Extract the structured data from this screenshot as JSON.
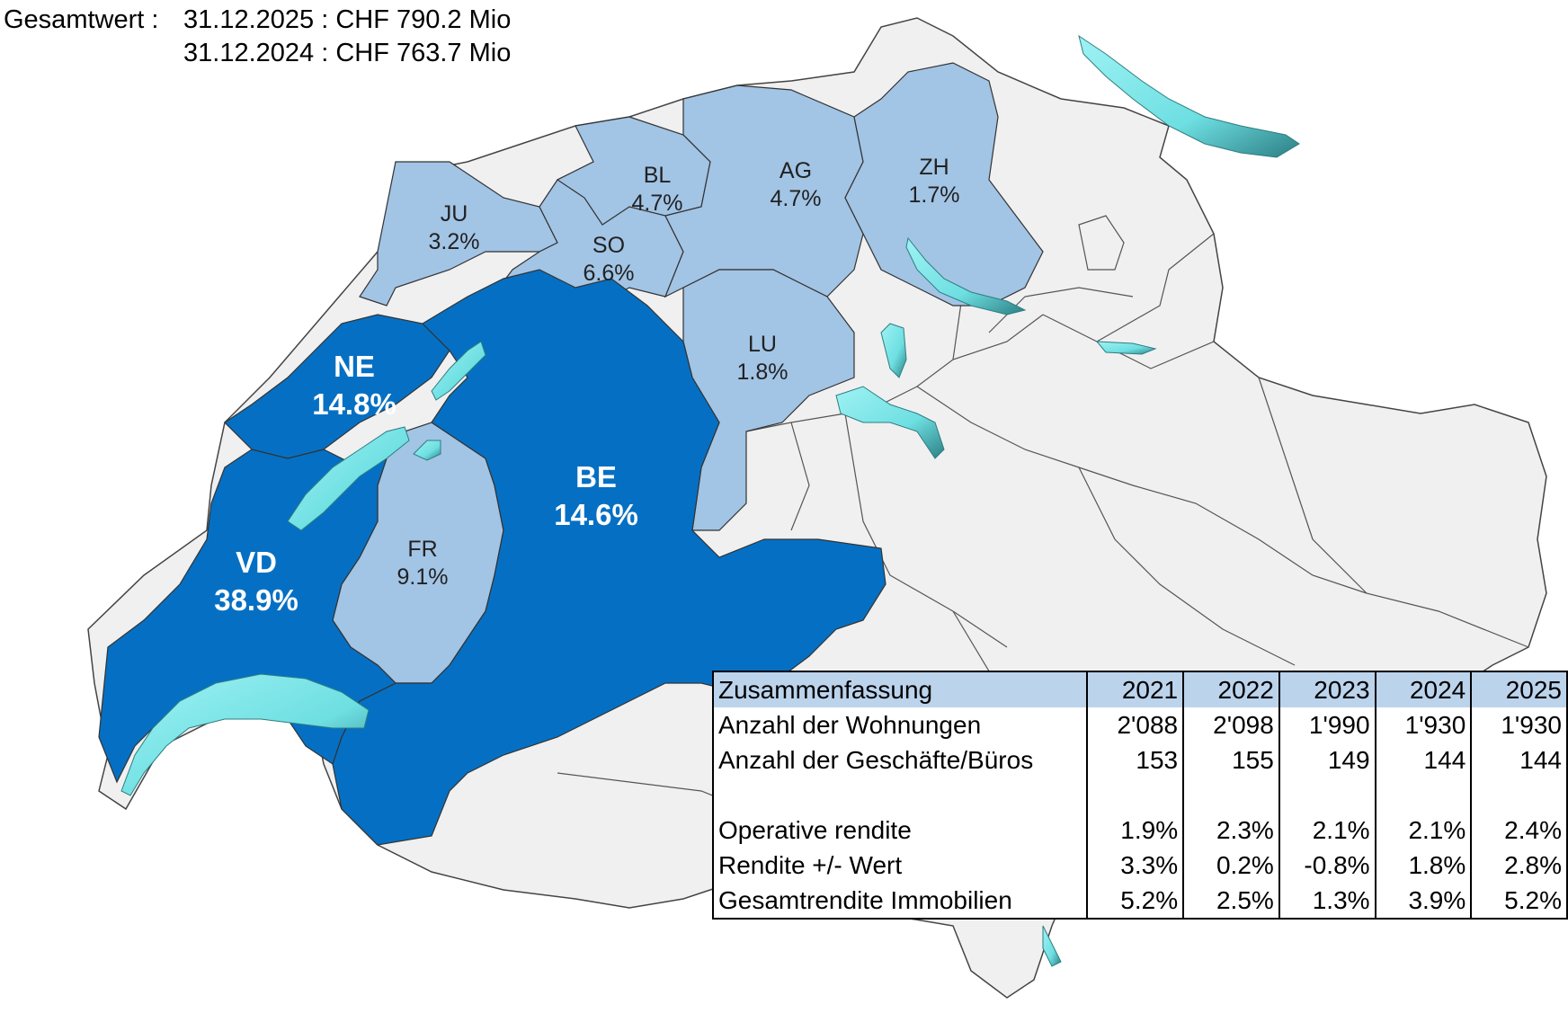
{
  "header": {
    "label": "Gesamtwert :",
    "values": [
      "31.12.2025 : CHF 790.2 Mio",
      "31.12.2024 : CHF 763.7 Mio"
    ]
  },
  "colors": {
    "dark_canton": "#0570c3",
    "light_canton": "#a2c4e5",
    "other_canton": "#f0f0f0",
    "lake": "#7ee5e8",
    "table_header": "#bcd3ec"
  },
  "cantons": [
    {
      "code": "VD",
      "share": "38.9%",
      "highlight": "strong"
    },
    {
      "code": "NE",
      "share": "14.8%",
      "highlight": "strong"
    },
    {
      "code": "BE",
      "share": "14.6%",
      "highlight": "strong"
    },
    {
      "code": "FR",
      "share": "9.1%",
      "highlight": "light"
    },
    {
      "code": "SO",
      "share": "6.6%",
      "highlight": "light"
    },
    {
      "code": "BL",
      "share": "4.7%",
      "highlight": "light"
    },
    {
      "code": "AG",
      "share": "4.7%",
      "highlight": "light"
    },
    {
      "code": "JU",
      "share": "3.2%",
      "highlight": "light"
    },
    {
      "code": "LU",
      "share": "1.8%",
      "highlight": "light"
    },
    {
      "code": "ZH",
      "share": "1.7%",
      "highlight": "light"
    }
  ],
  "summary": {
    "title": "Zusammenfassung",
    "years": [
      "2021",
      "2022",
      "2023",
      "2024",
      "2025"
    ],
    "rows": [
      {
        "label": "Anzahl der Wohnungen",
        "values": [
          "2'088",
          "2'098",
          "1'990",
          "1'930",
          "1'930"
        ]
      },
      {
        "label": "Anzahl der Geschäfte/Büros",
        "values": [
          "153",
          "155",
          "149",
          "144",
          "144"
        ]
      },
      {
        "label": "",
        "values": [
          "",
          "",
          "",
          "",
          ""
        ]
      },
      {
        "label": "Operative rendite",
        "values": [
          "1.9%",
          "2.3%",
          "2.1%",
          "2.1%",
          "2.4%"
        ]
      },
      {
        "label": "Rendite +/- Wert",
        "values": [
          "3.3%",
          "0.2%",
          "-0.8%",
          "1.8%",
          "2.8%"
        ]
      },
      {
        "label": "Gesamtrendite Immobilien",
        "values": [
          "5.2%",
          "2.5%",
          "1.3%",
          "3.9%",
          "5.2%"
        ]
      }
    ]
  }
}
